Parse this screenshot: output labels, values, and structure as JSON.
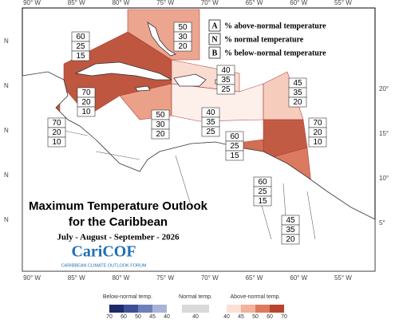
{
  "map": {
    "lon_labels": [
      "90° W",
      "85° W",
      "80° W",
      "75° W",
      "70° W",
      "65° W",
      "60° W",
      "55° W"
    ],
    "lat_labels_left": [
      "N",
      "N",
      "N",
      "N",
      "N"
    ],
    "lat_labels_right": [
      "20°",
      "15°",
      "10°",
      "5°"
    ],
    "key": [
      {
        "letter": "A",
        "text": "% above-normal temperature"
      },
      {
        "letter": "N",
        "text": "% normal temperature"
      },
      {
        "letter": "B",
        "text": "% below-normal temperature"
      }
    ],
    "title": [
      "Maximum Temperature Outlook",
      "for the Caribbean"
    ],
    "period": "July - August - September - 2026",
    "logo": "CariCOF",
    "logo_sub": "CARIBBEAN CLIMATE OUTLOOK FORUM",
    "regions": [
      {
        "values": [
          50,
          30,
          20
        ],
        "color": "#eb9c82"
      },
      {
        "values": [
          60,
          25,
          15
        ],
        "color": "#b8442c"
      },
      {
        "values": [
          70,
          20,
          10
        ],
        "color": "#b8442c"
      },
      {
        "values": [
          70,
          20,
          10
        ],
        "color": "#b8442c"
      },
      {
        "values": [
          50,
          30,
          20
        ],
        "color": "#e9977b"
      },
      {
        "values": [
          40,
          35,
          25
        ],
        "color": "#fad8cb"
      },
      {
        "values": [
          40,
          35,
          25
        ],
        "color": "#fdeee8"
      },
      {
        "values": [
          45,
          35,
          20
        ],
        "color": "#f6c7b6"
      },
      {
        "values": [
          70,
          20,
          10
        ],
        "color": "#bc4a30"
      },
      {
        "values": [
          60,
          25,
          15
        ],
        "color": "#cf5e41"
      },
      {
        "values": [
          60,
          25,
          15
        ],
        "color": "#d96c4f"
      },
      {
        "values": [
          45,
          35,
          20
        ],
        "color": "#f6c7b6"
      }
    ],
    "colorbar": {
      "below_title": "Below-normal temp.",
      "below_ticks": [
        70,
        60,
        50,
        45,
        40
      ],
      "below_colors": [
        "#1f2a6b",
        "#3d4f96",
        "#6f7fb8",
        "#a9b3d6"
      ],
      "normal_title": "Normal temp.",
      "normal_ticks": [
        40
      ],
      "normal_color": "#d9d9d9",
      "above_title": "Above-normal temp.",
      "above_ticks": [
        40,
        45,
        50,
        60,
        70
      ],
      "above_colors": [
        "#fbe0d5",
        "#f2b29b",
        "#dd7a5c",
        "#b8442c"
      ]
    }
  }
}
